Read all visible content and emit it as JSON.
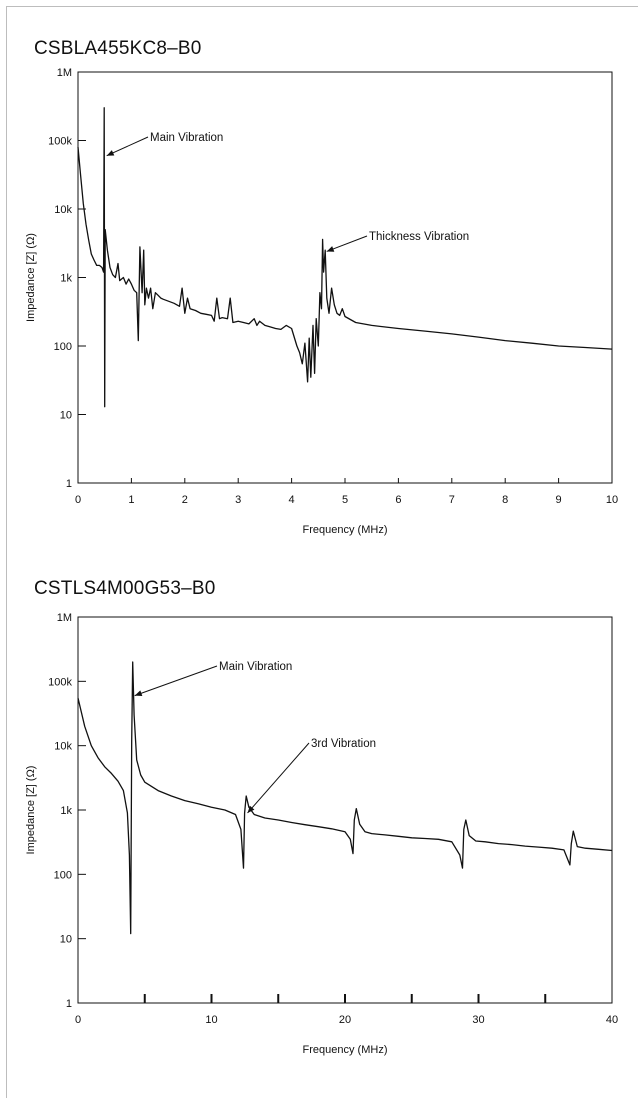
{
  "chart_data": [
    {
      "type": "line",
      "title": "CSBLA455KC8–B0",
      "xlabel": "Frequency (MHz)",
      "ylabel": "Impedance [Z] (Ω)",
      "xlim": [
        0,
        10
      ],
      "ylim": [
        1,
        1000000
      ],
      "yscale": "log",
      "x_ticks": [
        0,
        1,
        2,
        3,
        4,
        5,
        6,
        7,
        8,
        9,
        10
      ],
      "x_tick_labels": [
        "0",
        "1",
        "2",
        "3",
        "4",
        "5",
        "6",
        "7",
        "8",
        "9",
        "10"
      ],
      "y_ticks": [
        1,
        10,
        100,
        1000,
        10000,
        100000,
        1000000
      ],
      "y_tick_labels": [
        "1",
        "10",
        "100",
        "1k",
        "10k",
        "100k",
        "1M"
      ],
      "grid": false,
      "series": [
        {
          "points": [
            [
              0,
              80000
            ],
            [
              0.05,
              30000
            ],
            [
              0.1,
              12000
            ],
            [
              0.15,
              6000
            ],
            [
              0.2,
              3500
            ],
            [
              0.25,
              2200
            ],
            [
              0.3,
              1800
            ],
            [
              0.35,
              1500
            ],
            [
              0.4,
              1500
            ],
            [
              0.45,
              1400
            ],
            [
              0.48,
              1200
            ],
            [
              0.49,
              300000
            ],
            [
              0.5,
              13
            ],
            [
              0.51,
              5000
            ],
            [
              0.55,
              2500
            ],
            [
              0.6,
              1400
            ],
            [
              0.65,
              1100
            ],
            [
              0.7,
              1000
            ],
            [
              0.75,
              1600
            ],
            [
              0.78,
              900
            ],
            [
              0.85,
              1000
            ],
            [
              0.9,
              800
            ],
            [
              0.95,
              950
            ],
            [
              1.0,
              800
            ],
            [
              1.05,
              650
            ],
            [
              1.1,
              600
            ],
            [
              1.13,
              120
            ],
            [
              1.16,
              2800
            ],
            [
              1.2,
              600
            ],
            [
              1.23,
              2500
            ],
            [
              1.25,
              400
            ],
            [
              1.28,
              700
            ],
            [
              1.32,
              500
            ],
            [
              1.36,
              700
            ],
            [
              1.4,
              350
            ],
            [
              1.45,
              600
            ],
            [
              1.5,
              550
            ],
            [
              1.55,
              500
            ],
            [
              1.6,
              480
            ],
            [
              1.7,
              450
            ],
            [
              1.8,
              420
            ],
            [
              1.9,
              380
            ],
            [
              1.95,
              700
            ],
            [
              2.0,
              300
            ],
            [
              2.05,
              500
            ],
            [
              2.1,
              350
            ],
            [
              2.2,
              330
            ],
            [
              2.3,
              300
            ],
            [
              2.4,
              290
            ],
            [
              2.5,
              280
            ],
            [
              2.55,
              230
            ],
            [
              2.6,
              500
            ],
            [
              2.65,
              250
            ],
            [
              2.7,
              260
            ],
            [
              2.8,
              250
            ],
            [
              2.85,
              500
            ],
            [
              2.9,
              220
            ],
            [
              3.0,
              230
            ],
            [
              3.1,
              220
            ],
            [
              3.2,
              210
            ],
            [
              3.3,
              250
            ],
            [
              3.35,
              200
            ],
            [
              3.4,
              230
            ],
            [
              3.5,
              200
            ],
            [
              3.6,
              190
            ],
            [
              3.7,
              180
            ],
            [
              3.8,
              175
            ],
            [
              3.9,
              200
            ],
            [
              4.0,
              180
            ],
            [
              4.1,
              100
            ],
            [
              4.15,
              80
            ],
            [
              4.2,
              55
            ],
            [
              4.25,
              110
            ],
            [
              4.3,
              30
            ],
            [
              4.33,
              130
            ],
            [
              4.36,
              35
            ],
            [
              4.4,
              200
            ],
            [
              4.43,
              40
            ],
            [
              4.46,
              250
            ],
            [
              4.5,
              100
            ],
            [
              4.53,
              600
            ],
            [
              4.56,
              350
            ],
            [
              4.58,
              3600
            ],
            [
              4.6,
              1200
            ],
            [
              4.63,
              2500
            ],
            [
              4.66,
              500
            ],
            [
              4.7,
              300
            ],
            [
              4.75,
              700
            ],
            [
              4.8,
              400
            ],
            [
              4.85,
              300
            ],
            [
              4.9,
              280
            ],
            [
              4.95,
              350
            ],
            [
              5.0,
              270
            ],
            [
              5.2,
              220
            ],
            [
              5.5,
              200
            ],
            [
              6.0,
              180
            ],
            [
              6.5,
              165
            ],
            [
              7.0,
              150
            ],
            [
              7.5,
              135
            ],
            [
              8.0,
              120
            ],
            [
              8.5,
              110
            ],
            [
              9.0,
              100
            ],
            [
              9.5,
              95
            ],
            [
              10.0,
              90
            ]
          ]
        }
      ],
      "annotations": [
        {
          "text": "Main Vibration",
          "x": 0.5,
          "y": 60000
        },
        {
          "text": "Thickness Vibration",
          "x": 4.62,
          "y": 2400
        }
      ]
    },
    {
      "type": "line",
      "title": "CSTLS4M00G53–B0",
      "xlabel": "Frequency (MHz)",
      "ylabel": "Impedance [Z] (Ω)",
      "xlim": [
        0,
        40
      ],
      "ylim": [
        1,
        1000000
      ],
      "yscale": "log",
      "x_ticks": [
        0,
        5,
        10,
        15,
        20,
        25,
        30,
        35,
        40
      ],
      "x_tick_labels": [
        "0",
        "",
        "10",
        "",
        "20",
        "",
        "30",
        "",
        "40"
      ],
      "y_ticks": [
        1,
        10,
        100,
        1000,
        10000,
        100000,
        1000000
      ],
      "y_tick_labels": [
        "1",
        "10",
        "100",
        "1k",
        "10k",
        "100k",
        "1M"
      ],
      "grid": false,
      "series": [
        {
          "points": [
            [
              0,
              55000
            ],
            [
              0.5,
              20000
            ],
            [
              1,
              10000
            ],
            [
              1.5,
              6500
            ],
            [
              2,
              4700
            ],
            [
              2.5,
              3700
            ],
            [
              3,
              2800
            ],
            [
              3.4,
              2000
            ],
            [
              3.7,
              900
            ],
            [
              3.85,
              200
            ],
            [
              3.95,
              12
            ],
            [
              4.02,
              12000
            ],
            [
              4.1,
              200000
            ],
            [
              4.2,
              30000
            ],
            [
              4.4,
              6000
            ],
            [
              4.7,
              3500
            ],
            [
              5.0,
              2700
            ],
            [
              6,
              2000
            ],
            [
              7,
              1650
            ],
            [
              8,
              1400
            ],
            [
              9,
              1250
            ],
            [
              10,
              1100
            ],
            [
              11,
              1000
            ],
            [
              11.8,
              850
            ],
            [
              12.2,
              500
            ],
            [
              12.4,
              125
            ],
            [
              12.48,
              900
            ],
            [
              12.6,
              1650
            ],
            [
              12.8,
              1100
            ],
            [
              13.2,
              850
            ],
            [
              14,
              750
            ],
            [
              15,
              700
            ],
            [
              16,
              640
            ],
            [
              17,
              590
            ],
            [
              18,
              550
            ],
            [
              19,
              510
            ],
            [
              20,
              460
            ],
            [
              20.4,
              350
            ],
            [
              20.6,
              210
            ],
            [
              20.7,
              700
            ],
            [
              20.85,
              1050
            ],
            [
              21.1,
              600
            ],
            [
              21.5,
              460
            ],
            [
              22,
              430
            ],
            [
              23,
              410
            ],
            [
              24,
              390
            ],
            [
              25,
              370
            ],
            [
              26,
              360
            ],
            [
              27,
              350
            ],
            [
              28,
              320
            ],
            [
              28.6,
              200
            ],
            [
              28.8,
              125
            ],
            [
              28.9,
              500
            ],
            [
              29.05,
              700
            ],
            [
              29.3,
              400
            ],
            [
              29.8,
              330
            ],
            [
              30.5,
              320
            ],
            [
              31.5,
              300
            ],
            [
              32.5,
              290
            ],
            [
              33.5,
              275
            ],
            [
              34.5,
              265
            ],
            [
              35.5,
              255
            ],
            [
              36.4,
              240
            ],
            [
              36.85,
              140
            ],
            [
              36.95,
              300
            ],
            [
              37.1,
              470
            ],
            [
              37.4,
              270
            ],
            [
              38,
              255
            ],
            [
              39,
              245
            ],
            [
              40,
              235
            ]
          ]
        }
      ],
      "annotations": [
        {
          "text": "Main Vibration",
          "x": 4.1,
          "y": 60000
        },
        {
          "text": "3rd Vibration",
          "x": 12.55,
          "y": 900
        }
      ]
    }
  ]
}
